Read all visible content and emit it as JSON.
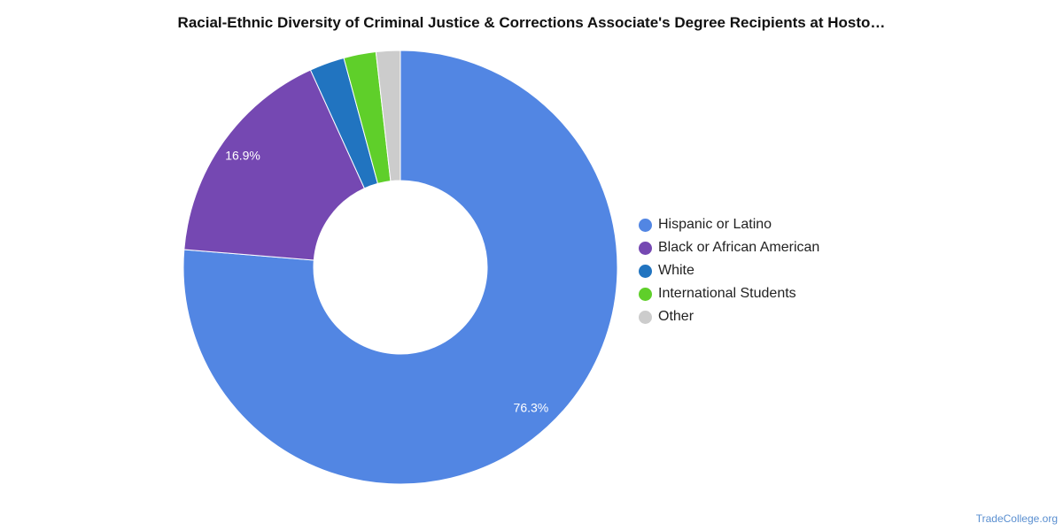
{
  "chart_data": {
    "type": "pie",
    "title": "Racial-Ethnic Diversity of Criminal Justice & Corrections Associate's Degree Recipients at Hosto…",
    "donut": true,
    "legend_position": "right",
    "slices": [
      {
        "label": "Hispanic or Latino",
        "value": 76.3,
        "color": "#5286e3",
        "data_label": "76.3%"
      },
      {
        "label": "Black or African American",
        "value": 16.9,
        "color": "#7548b2",
        "data_label": "16.9%"
      },
      {
        "label": "White",
        "value": 2.6,
        "color": "#2174c0",
        "data_label": ""
      },
      {
        "label": "International Students",
        "value": 2.4,
        "color": "#5fcf2a",
        "data_label": ""
      },
      {
        "label": "Other",
        "value": 1.8,
        "color": "#cccccc",
        "data_label": ""
      }
    ]
  },
  "footer": {
    "source": "TradeCollege.org"
  }
}
